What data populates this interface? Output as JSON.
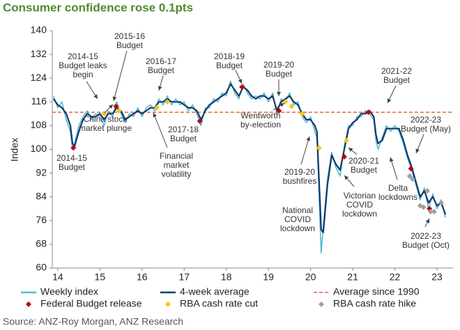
{
  "chart_data": {
    "type": "line",
    "title": "Consumer confidence rose 0.1pts",
    "ylabel": "Index",
    "source": "Source: ANZ-Roy Morgan, ANZ Research",
    "xlim": [
      13.87,
      23.38
    ],
    "xticks": [
      14,
      15,
      16,
      17,
      18,
      19,
      20,
      21,
      22,
      23
    ],
    "ylim": [
      60,
      140
    ],
    "yticks": [
      60,
      68,
      76,
      84,
      92,
      100,
      108,
      116,
      124,
      132,
      140
    ],
    "x": [
      13.9,
      14.0,
      14.1,
      14.2,
      14.3,
      14.35,
      14.4,
      14.5,
      14.6,
      14.7,
      14.8,
      14.9,
      15.0,
      15.1,
      15.2,
      15.3,
      15.4,
      15.5,
      15.6,
      15.7,
      15.8,
      15.9,
      16.0,
      16.1,
      16.2,
      16.3,
      16.4,
      16.5,
      16.6,
      16.7,
      16.8,
      16.9,
      17.0,
      17.1,
      17.2,
      17.3,
      17.4,
      17.5,
      17.6,
      17.7,
      17.8,
      17.9,
      18.0,
      18.1,
      18.2,
      18.3,
      18.4,
      18.5,
      18.6,
      18.7,
      18.8,
      18.9,
      19.0,
      19.1,
      19.2,
      19.3,
      19.4,
      19.5,
      19.6,
      19.7,
      19.8,
      19.9,
      20.0,
      20.1,
      20.15,
      20.2,
      20.25,
      20.3,
      20.4,
      20.5,
      20.6,
      20.7,
      20.8,
      20.9,
      21.0,
      21.1,
      21.2,
      21.3,
      21.4,
      21.5,
      21.55,
      21.6,
      21.7,
      21.8,
      21.9,
      22.0,
      22.1,
      22.2,
      22.3,
      22.4,
      22.5,
      22.6,
      22.7,
      22.8,
      22.9,
      23.0,
      23.1,
      23.2
    ],
    "series": [
      {
        "name": "Weekly index",
        "color": "#5bb6d6",
        "values": [
          118,
          114,
          116,
          110,
          106,
          100,
          102,
          108,
          111,
          113,
          110,
          112,
          111,
          108,
          113,
          111,
          116,
          112,
          109,
          112,
          111,
          114,
          111,
          114,
          115,
          113,
          117,
          115,
          118,
          115,
          117,
          115,
          116,
          113,
          115,
          112,
          108,
          114,
          114,
          117,
          116,
          119,
          118,
          123,
          119,
          117,
          122,
          119,
          117,
          118,
          117,
          119,
          116,
          119,
          112,
          117,
          116,
          119,
          115,
          116,
          111,
          109,
          111,
          106,
          104,
          85,
          65,
          74,
          90,
          99,
          94,
          91,
          101,
          108,
          108,
          111,
          111,
          113,
          112,
          110,
          103,
          100,
          104,
          108,
          106,
          108,
          106,
          102,
          97,
          93,
          88,
          83,
          87,
          80,
          85,
          80,
          83,
          77
        ]
      },
      {
        "name": "4-week average",
        "color": "#0e3c6b",
        "values": [
          117,
          115,
          114,
          112,
          108,
          102,
          101,
          106,
          110,
          112,
          111,
          111,
          112,
          110,
          112,
          112,
          114,
          113,
          110,
          111,
          112,
          113,
          112,
          113,
          114,
          114,
          116,
          116,
          117,
          116,
          116,
          116,
          115,
          114,
          114,
          113,
          110,
          113,
          115,
          116,
          117,
          118,
          119,
          122,
          120,
          118,
          121,
          120,
          118,
          117,
          118,
          118,
          117,
          118,
          113,
          116,
          117,
          118,
          116,
          115,
          112,
          110,
          110,
          108,
          106,
          90,
          73,
          72,
          88,
          98,
          95,
          93,
          100,
          107,
          109,
          110,
          112,
          112,
          113,
          111,
          105,
          102,
          103,
          107,
          107,
          107,
          107,
          103,
          98,
          94,
          89,
          84,
          86,
          82,
          84,
          81,
          82,
          78
        ]
      }
    ],
    "reference_line": {
      "name": "Average since 1990",
      "value": 112.5,
      "color": "#e8643c"
    },
    "markers": [
      {
        "name": "Federal Budget release",
        "color": "#c00000",
        "x": [
          14.37,
          15.38,
          17.37,
          18.37,
          19.25,
          20.8,
          21.37,
          22.38,
          22.82
        ],
        "values": [
          100.5,
          114.5,
          109.5,
          121,
          113,
          97.5,
          112.5,
          93.5,
          80
        ]
      },
      {
        "name": "RBA cash rate cut",
        "color": "#f5c518",
        "x": [
          15.1,
          15.45,
          16.35,
          16.6,
          19.4,
          19.55,
          19.8,
          20.2,
          20.85
        ],
        "values": [
          112,
          113,
          114,
          116,
          116,
          114.5,
          112,
          100.5,
          103
        ]
      },
      {
        "name": "RBA cash rate hike",
        "color": "#a0a0a0",
        "x": [
          22.35,
          22.42,
          22.6,
          22.68,
          22.77,
          22.85,
          22.93,
          23.1
        ],
        "values": [
          91,
          90,
          81,
          80.5,
          86,
          79,
          79,
          82
        ]
      }
    ],
    "annotations": [
      [
        "2014-15",
        "Budget leaks",
        "begin"
      ],
      [
        "2015-16",
        "Budget"
      ],
      [
        "2016-17",
        "Budget"
      ],
      [
        "2018-19",
        "Budget"
      ],
      [
        "2019-20",
        "Budget"
      ],
      [
        "2021-22",
        "Budget"
      ],
      [
        "2022-23",
        "Budget (May)"
      ],
      [
        "2014-15",
        "Budget"
      ],
      [
        "China stock",
        "market plunge"
      ],
      [
        "2017-18",
        "Budget"
      ],
      [
        "Financial",
        "market",
        "volatility"
      ],
      [
        "Wentworth",
        "by-election"
      ],
      [
        "2019-20",
        "bushfires"
      ],
      [
        "2020-21",
        "Budget"
      ],
      [
        "National",
        "COVID",
        "lockdown"
      ],
      [
        "Victorian",
        "COVID",
        "lockdown"
      ],
      [
        "Delta",
        "lockdowns"
      ],
      [
        "2022-23",
        "Budget (Oct)"
      ]
    ]
  }
}
